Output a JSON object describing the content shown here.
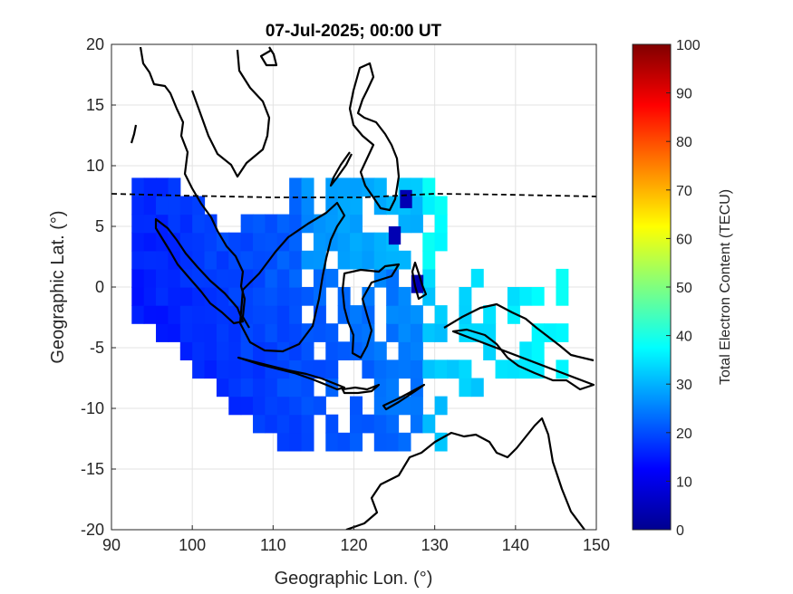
{
  "chart_data": {
    "type": "heatmap",
    "title": "07-Jul-2025; 00:00 UT",
    "xlabel": "Geographic Lon. (°)",
    "ylabel": "Geographic Lat. (°)",
    "xlim": [
      90,
      150
    ],
    "ylim": [
      -20,
      20
    ],
    "xticks": [
      "90",
      "100",
      "110",
      "120",
      "130",
      "140",
      "150"
    ],
    "yticks": [
      "20",
      "15",
      "10",
      "5",
      "0",
      "-5",
      "-10",
      "-15",
      "-20"
    ],
    "grid": true,
    "colorbar": {
      "label": "Total Electron Content (TECU)",
      "limits": [
        0,
        100
      ],
      "ticks": [
        "0",
        "10",
        "20",
        "30",
        "40",
        "50",
        "60",
        "70",
        "80",
        "90",
        "100"
      ],
      "colormap": "jet"
    },
    "magnetic_equator_line": "dashed"
  }
}
